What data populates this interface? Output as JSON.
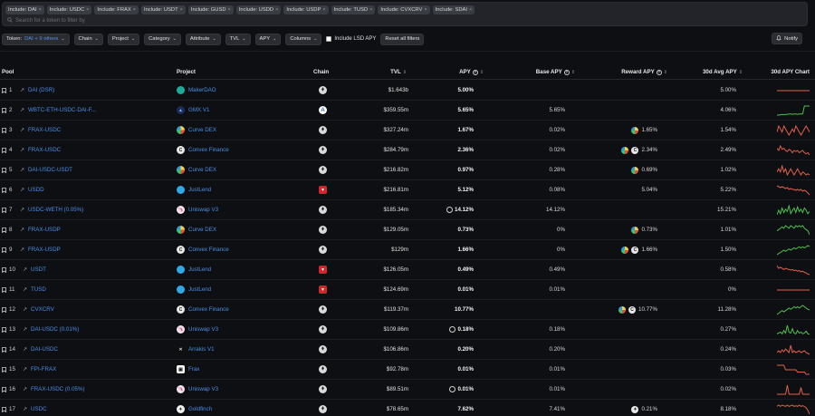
{
  "token_chips": [
    "Include: DAI",
    "Include: USDC",
    "Include: FRAX",
    "Include: USDT",
    "Include: GUSD",
    "Include: USDD",
    "Include: USDP",
    "Include: TUSD",
    "Include: CVXCRV",
    "Include: SDAI"
  ],
  "search_placeholder": "Search for a token to filter by",
  "toolbar": {
    "token_label": "Token:",
    "token_value": "DAI + 9 others",
    "chain": "Chain",
    "project": "Project",
    "category": "Category",
    "attribute": "Attribute",
    "tvl": "TVL",
    "apy": "APY",
    "columns": "Columns",
    "include_lsd": "Include LSD APY",
    "reset": "Reset all filters",
    "notify": "Notify"
  },
  "columns": {
    "pool": "Pool",
    "project": "Project",
    "chain": "Chain",
    "tvl": "TVL",
    "apy": "APY",
    "base_apy": "Base APY",
    "reward_apy": "Reward APY",
    "avg_apy": "30d Avg APY",
    "chart": "30d APY Chart"
  },
  "rows": [
    {
      "n": "1",
      "pool": "DAI (DSR)",
      "project": "MakerDAO",
      "logo": "maker",
      "chain": "eth",
      "tvl": "$1.643b",
      "apy": "5.00%",
      "apy_clock": false,
      "base": "",
      "reward": "",
      "reward_icons": [],
      "avg": "5.00%",
      "spark": [
        5,
        5,
        5,
        5,
        5,
        5,
        5,
        5,
        5,
        5,
        5,
        5,
        5,
        5,
        5,
        5,
        5,
        5,
        5,
        5
      ],
      "spark_color": "#e0604a"
    },
    {
      "n": "2",
      "pool": "WBTC-ETH-USDC-DAI-F...",
      "project": "GMX V1",
      "logo": "gmx",
      "chain": "arb",
      "tvl": "$359.55m",
      "apy": "5.65%",
      "apy_clock": false,
      "base": "5.65%",
      "reward": "",
      "reward_icons": [],
      "avg": "4.06%",
      "spark": [
        3,
        3,
        3.1,
        3.2,
        3.1,
        3.2,
        3.2,
        3.3,
        3.3,
        3.2,
        3.3,
        3.3,
        3.2,
        3.3,
        3.3,
        3.3,
        5.6,
        5.6,
        5.6,
        5.6
      ],
      "spark_color": "#4cc04c"
    },
    {
      "n": "3",
      "pool": "FRAX-USDC",
      "project": "Curve DEX",
      "logo": "curve",
      "chain": "eth",
      "tvl": "$327.24m",
      "apy": "1.67%",
      "apy_clock": false,
      "base": "0.02%",
      "reward": "1.65%",
      "reward_icons": [
        "crv"
      ],
      "avg": "1.54%",
      "spark": [
        1.5,
        1.6,
        1.55,
        1.5,
        1.6,
        1.55,
        1.5,
        1.45,
        1.5,
        1.55,
        1.5,
        1.6,
        1.55,
        1.5,
        1.45,
        1.5,
        1.55,
        1.6,
        1.55,
        1.5
      ],
      "spark_color": "#e0604a"
    },
    {
      "n": "4",
      "pool": "FRAX-USDC",
      "project": "Convex Finance",
      "logo": "convex",
      "chain": "eth",
      "tvl": "$284.79m",
      "apy": "2.36%",
      "apy_clock": false,
      "base": "0.02%",
      "reward": "2.34%",
      "reward_icons": [
        "crv",
        "cvx"
      ],
      "avg": "2.49%",
      "spark": [
        2.6,
        2.5,
        2.7,
        2.55,
        2.6,
        2.5,
        2.45,
        2.55,
        2.5,
        2.4,
        2.5,
        2.45,
        2.5,
        2.4,
        2.45,
        2.5,
        2.4,
        2.35,
        2.4,
        2.3
      ],
      "spark_color": "#e0604a"
    },
    {
      "n": "5",
      "pool": "DAI-USDC-USDT",
      "project": "Curve DEX",
      "logo": "curve",
      "chain": "eth",
      "tvl": "$216.82m",
      "apy": "0.97%",
      "apy_clock": false,
      "base": "0.28%",
      "reward": "0.69%",
      "reward_icons": [
        "crv"
      ],
      "avg": "1.02%",
      "spark": [
        1.0,
        1.05,
        1.0,
        1.1,
        1.0,
        1.05,
        0.95,
        1.0,
        1.05,
        1.0,
        0.95,
        1.0,
        1.05,
        1.0,
        0.95,
        1.0,
        0.98,
        0.95,
        0.97,
        0.95
      ],
      "spark_color": "#e0604a"
    },
    {
      "n": "6",
      "pool": "USDD",
      "project": "JustLend",
      "logo": "justlend",
      "chain": "tron",
      "tvl": "$216.81m",
      "apy": "5.12%",
      "apy_clock": false,
      "base": "0.08%",
      "reward": "5.04%",
      "reward_icons": [],
      "avg": "5.22%",
      "spark": [
        5.4,
        5.35,
        5.3,
        5.35,
        5.3,
        5.25,
        5.3,
        5.2,
        5.25,
        5.2,
        5.2,
        5.15,
        5.2,
        5.15,
        5.2,
        5.1,
        5.15,
        5.1,
        5.0,
        4.9
      ],
      "spark_color": "#e0604a"
    },
    {
      "n": "7",
      "pool": "USDC-WETH (0.05%)",
      "project": "Uniswap V3",
      "logo": "uniswap",
      "chain": "eth",
      "tvl": "$185.34m",
      "apy": "14.12%",
      "apy_clock": true,
      "base": "14.12%",
      "reward": "",
      "reward_icons": [],
      "avg": "15.21%",
      "spark": [
        12,
        16,
        13,
        18,
        14,
        17,
        15,
        20,
        13,
        16,
        18,
        14,
        19,
        15,
        17,
        14,
        18,
        16,
        13,
        15
      ],
      "spark_color": "#4cc04c"
    },
    {
      "n": "8",
      "pool": "FRAX-USDP",
      "project": "Curve DEX",
      "logo": "curve",
      "chain": "eth",
      "tvl": "$129.05m",
      "apy": "0.73%",
      "apy_clock": false,
      "base": "0%",
      "reward": "0.73%",
      "reward_icons": [
        "crv"
      ],
      "avg": "1.01%",
      "spark": [
        0.9,
        0.95,
        1.0,
        1.05,
        1.0,
        1.1,
        1.05,
        1.0,
        1.1,
        1.05,
        1.0,
        1.1,
        1.05,
        1.1,
        1.05,
        1.1,
        1.0,
        0.95,
        0.9,
        0.75
      ],
      "spark_color": "#4cc04c"
    },
    {
      "n": "9",
      "pool": "FRAX-USDP",
      "project": "Convex Finance",
      "logo": "convex",
      "chain": "eth",
      "tvl": "$129m",
      "apy": "1.66%",
      "apy_clock": false,
      "base": "0%",
      "reward": "1.66%",
      "reward_icons": [
        "crv",
        "cvx"
      ],
      "avg": "1.50%",
      "spark": [
        1.3,
        1.35,
        1.4,
        1.45,
        1.5,
        1.45,
        1.5,
        1.55,
        1.5,
        1.55,
        1.6,
        1.55,
        1.6,
        1.65,
        1.6,
        1.65,
        1.6,
        1.65,
        1.7,
        1.66
      ],
      "spark_color": "#4cc04c"
    },
    {
      "n": "10",
      "pool": "USDT",
      "project": "JustLend",
      "logo": "justlend",
      "chain": "tron",
      "tvl": "$126.05m",
      "apy": "0.49%",
      "apy_clock": false,
      "base": "0.49%",
      "reward": "",
      "reward_icons": [],
      "avg": "0.58%",
      "spark": [
        0.65,
        0.6,
        0.62,
        0.6,
        0.58,
        0.6,
        0.59,
        0.58,
        0.57,
        0.58,
        0.56,
        0.57,
        0.55,
        0.56,
        0.54,
        0.55,
        0.53,
        0.52,
        0.5,
        0.49
      ],
      "spark_color": "#e0604a"
    },
    {
      "n": "11",
      "pool": "TUSD",
      "project": "JustLend",
      "logo": "justlend",
      "chain": "tron",
      "tvl": "$124.69m",
      "apy": "0.01%",
      "apy_clock": false,
      "base": "0.01%",
      "reward": "",
      "reward_icons": [],
      "avg": "0%",
      "spark": [
        0.01,
        0.01,
        0.01,
        0.01,
        0.01,
        0.01,
        0.01,
        0.01,
        0.01,
        0.01,
        0.01,
        0.01,
        0.01,
        0.01,
        0.01,
        0.01,
        0.01,
        0.01,
        0.01,
        0.01
      ],
      "spark_color": "#e0604a"
    },
    {
      "n": "12",
      "pool": "CVXCRV",
      "project": "Convex Finance",
      "logo": "convex",
      "chain": "eth",
      "tvl": "$119.37m",
      "apy": "10.77%",
      "apy_clock": false,
      "base": "",
      "reward": "10.77%",
      "reward_icons": [
        "crv",
        "cvx"
      ],
      "avg": "11.28%",
      "spark": [
        9,
        9.5,
        10,
        10.5,
        10,
        10.5,
        11,
        11.5,
        11,
        11.5,
        12,
        11.5,
        12,
        11.5,
        12,
        12.5,
        12,
        11.5,
        11,
        10.8
      ],
      "spark_color": "#4cc04c"
    },
    {
      "n": "13",
      "pool": "DAI-USDC (0.01%)",
      "project": "Uniswap V3",
      "logo": "uniswap",
      "chain": "eth",
      "tvl": "$109.86m",
      "apy": "0.18%",
      "apy_clock": true,
      "base": "0.18%",
      "reward": "",
      "reward_icons": [],
      "avg": "0.27%",
      "spark": [
        0.2,
        0.22,
        0.25,
        0.2,
        0.3,
        0.22,
        0.45,
        0.25,
        0.22,
        0.35,
        0.22,
        0.2,
        0.3,
        0.22,
        0.25,
        0.2,
        0.22,
        0.28,
        0.2,
        0.18
      ],
      "spark_color": "#4cc04c"
    },
    {
      "n": "14",
      "pool": "DAI-USDC",
      "project": "Arrakis V1",
      "logo": "arrakis",
      "chain": "eth",
      "tvl": "$106.86m",
      "apy": "0.20%",
      "apy_clock": false,
      "base": "0.20%",
      "reward": "",
      "reward_icons": [],
      "avg": "0.24%",
      "spark": [
        0.22,
        0.24,
        0.22,
        0.25,
        0.23,
        0.26,
        0.24,
        0.22,
        0.3,
        0.22,
        0.24,
        0.22,
        0.23,
        0.24,
        0.22,
        0.23,
        0.24,
        0.22,
        0.21,
        0.2
      ],
      "spark_color": "#e0604a"
    },
    {
      "n": "15",
      "pool": "FPI-FRAX",
      "project": "Frax",
      "logo": "frax",
      "chain": "eth",
      "tvl": "$92.78m",
      "apy": "0.01%",
      "apy_clock": false,
      "base": "0.01%",
      "reward": "",
      "reward_icons": [],
      "avg": "0.03%",
      "spark": [
        0.05,
        0.05,
        0.05,
        0.05,
        0.05,
        0.03,
        0.03,
        0.03,
        0.03,
        0.03,
        0.03,
        0.03,
        0.02,
        0.02,
        0.02,
        0.02,
        0.02,
        0.01,
        0.01,
        0.01
      ],
      "spark_color": "#e0604a"
    },
    {
      "n": "16",
      "pool": "FRAX-USDC (0.05%)",
      "project": "Uniswap V3",
      "logo": "uniswap",
      "chain": "eth",
      "tvl": "$89.51m",
      "apy": "0.01%",
      "apy_clock": true,
      "base": "0.01%",
      "reward": "",
      "reward_icons": [],
      "avg": "0.02%",
      "spark": [
        0.01,
        0.01,
        0.01,
        0.01,
        0.01,
        0.01,
        0.05,
        0.01,
        0.01,
        0.01,
        0.01,
        0.01,
        0.01,
        0.01,
        0.04,
        0.01,
        0.01,
        0.01,
        0.01,
        0.01
      ],
      "spark_color": "#e0604a"
    },
    {
      "n": "17",
      "pool": "USDC",
      "project": "Goldfinch",
      "logo": "goldfinch",
      "chain": "eth",
      "tvl": "$78.65m",
      "apy": "7.62%",
      "apy_clock": false,
      "base": "7.41%",
      "reward": "0.21%",
      "reward_icons": [
        "gfi"
      ],
      "avg": "8.18%",
      "spark": [
        8.2,
        8.3,
        8.2,
        8.3,
        8.25,
        8.2,
        8.3,
        8.2,
        8.25,
        8.3,
        8.2,
        8.25,
        8.2,
        8.3,
        8.2,
        8.25,
        8.2,
        8.1,
        7.9,
        7.6
      ],
      "spark_color": "#e0604a"
    }
  ],
  "logo_colors": {
    "maker": "#1aab9b",
    "gmx": "#1e2c5a",
    "curve": "#f2c94c",
    "convex": "#e8e8e8",
    "justlend": "#2fa8e6",
    "uniswap": "#f5e6ee",
    "arrakis": "#101010",
    "frax": "#ffffff",
    "goldfinch": "#f0f0f0"
  }
}
